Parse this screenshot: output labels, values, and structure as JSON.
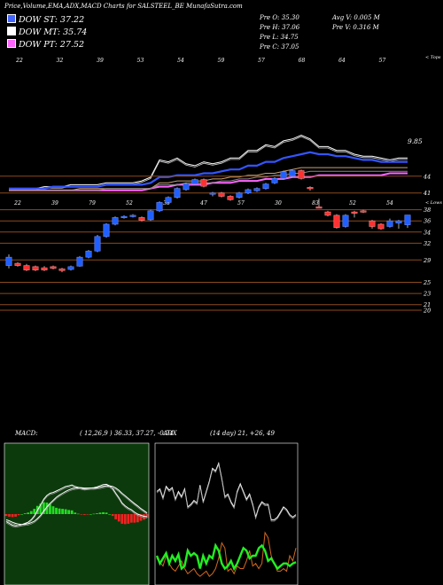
{
  "header": {
    "title": "Price,Volume,EMA,ADX,MACD Charts for SALSTEEL_BE MunafaSutra.com"
  },
  "legend": [
    {
      "label": "DOW ST: 37.22",
      "color": "#4466ff"
    },
    {
      "label": "DOW MT: 35.74",
      "color": "#ffffff"
    },
    {
      "label": "DOW PT: 27.52",
      "color": "#ff66ff"
    }
  ],
  "stats": {
    "open": "Pre  O: 35.30",
    "high": "Pre  H: 37.06",
    "low": "Pre  L: 34.75",
    "close": "Pre  C: 37.05",
    "avg_volume": "Avg V: 0.005  M",
    "pre_volume": "Pre  V: 0.316  M"
  },
  "chart_data": [
    {
      "name": "ema-panel",
      "type": "line",
      "top_tick_labels": [
        "22",
        "32",
        "39",
        "53",
        "54",
        "59",
        "57",
        "68",
        "64",
        "57"
      ],
      "top_axis_label": "< Tops",
      "bottom_tick_labels": [
        "22",
        "39",
        "79",
        "52",
        "38",
        "47",
        "57",
        "30",
        "83",
        "52",
        "54"
      ],
      "bottom_axis_label": "< Lows",
      "last_value_label": "9.85",
      "series": [
        {
          "color": "#ffffff",
          "values": [
            30,
            30,
            30,
            30,
            31,
            31,
            31,
            32,
            32,
            32,
            32,
            33,
            33,
            33,
            33,
            34,
            36,
            45,
            44,
            46,
            43,
            42,
            44,
            43,
            44,
            46,
            46,
            50,
            50,
            53,
            52,
            55,
            56,
            58,
            56,
            52,
            52,
            50,
            50,
            48,
            47,
            47,
            46,
            45,
            46,
            46
          ]
        },
        {
          "color": "#3355ff",
          "values": [
            30,
            30,
            30,
            30,
            30,
            31,
            31,
            31,
            31,
            31,
            31,
            32,
            32,
            32,
            32,
            32,
            33,
            36,
            36,
            37,
            37,
            37,
            38,
            38,
            39,
            40,
            40,
            42,
            42,
            44,
            44,
            46,
            47,
            48,
            49,
            48,
            48,
            47,
            47,
            46,
            45,
            45,
            44,
            44,
            44,
            44
          ]
        },
        {
          "color": "#ff66ff",
          "values": [
            29,
            29,
            29,
            29,
            29,
            29,
            29,
            29,
            29,
            29,
            29,
            29,
            29,
            29,
            29,
            29,
            30,
            31,
            31,
            32,
            32,
            32,
            32,
            33,
            33,
            33,
            34,
            34,
            34,
            35,
            35,
            35,
            36,
            36,
            36,
            37,
            37,
            37,
            37,
            37,
            37,
            37,
            37,
            38,
            38,
            38
          ]
        },
        {
          "color": "#c8a070",
          "values": [
            29,
            29,
            29,
            29,
            29,
            29,
            29,
            29,
            30,
            30,
            30,
            30,
            30,
            30,
            30,
            30,
            30,
            33,
            33,
            34,
            34,
            34,
            34,
            35,
            35,
            36,
            36,
            37,
            37,
            38,
            38,
            39,
            40,
            41,
            41,
            41,
            41,
            41,
            41,
            41,
            41,
            41,
            41,
            41,
            41,
            41
          ]
        },
        {
          "color": "#888888",
          "values": [
            29,
            29,
            29,
            29,
            29,
            29,
            29,
            29,
            29,
            29,
            29,
            30,
            30,
            30,
            30,
            30,
            30,
            32,
            32,
            32,
            33,
            33,
            33,
            33,
            34,
            34,
            35,
            35,
            36,
            36,
            37,
            37,
            38,
            38,
            39,
            39,
            39,
            39,
            39,
            39,
            39,
            39,
            39,
            39,
            39,
            39
          ]
        }
      ]
    },
    {
      "name": "price-panel",
      "type": "candlestick",
      "y_tick_labels": [
        "44",
        "41",
        "38",
        "36",
        "34",
        "32",
        "29",
        "25",
        "23",
        "21",
        "20"
      ],
      "y_tick_values": [
        44,
        41,
        38,
        36,
        34,
        32,
        29,
        25,
        23,
        21,
        20
      ],
      "ylim": [
        19.5,
        46.5
      ],
      "candles": [
        {
          "o": 28.0,
          "c": 29.5,
          "h": 30.0,
          "l": 27.5,
          "up": true
        },
        {
          "o": 28.4,
          "c": 28.0,
          "h": 28.6,
          "l": 27.8,
          "up": false
        },
        {
          "o": 28.0,
          "c": 27.2,
          "h": 28.3,
          "l": 27.0,
          "up": false
        },
        {
          "o": 27.8,
          "c": 27.2,
          "h": 28.0,
          "l": 27.0,
          "up": false
        },
        {
          "o": 27.6,
          "c": 27.2,
          "h": 27.9,
          "l": 27.0,
          "up": false
        },
        {
          "o": 27.8,
          "c": 27.5,
          "h": 28.0,
          "l": 27.3,
          "up": false
        },
        {
          "o": 27.4,
          "c": 27.1,
          "h": 27.6,
          "l": 26.8,
          "up": false
        },
        {
          "o": 27.3,
          "c": 27.8,
          "h": 28.0,
          "l": 27.1,
          "up": true
        },
        {
          "o": 27.9,
          "c": 29.5,
          "h": 29.7,
          "l": 27.8,
          "up": true
        },
        {
          "o": 29.5,
          "c": 30.6,
          "h": 30.8,
          "l": 29.3,
          "up": true
        },
        {
          "o": 30.6,
          "c": 33.2,
          "h": 33.5,
          "l": 30.4,
          "up": true
        },
        {
          "o": 33.2,
          "c": 35.4,
          "h": 35.6,
          "l": 33.0,
          "up": true
        },
        {
          "o": 35.4,
          "c": 36.6,
          "h": 36.8,
          "l": 35.2,
          "up": true
        },
        {
          "o": 36.6,
          "c": 36.8,
          "h": 37.0,
          "l": 36.4,
          "up": true
        },
        {
          "o": 36.8,
          "c": 37.0,
          "h": 37.2,
          "l": 36.6,
          "up": true
        },
        {
          "o": 36.6,
          "c": 36.1,
          "h": 36.8,
          "l": 35.9,
          "up": false
        },
        {
          "o": 36.2,
          "c": 37.8,
          "h": 38.0,
          "l": 36.0,
          "up": true
        },
        {
          "o": 37.8,
          "c": 39.3,
          "h": 39.5,
          "l": 37.6,
          "up": true
        },
        {
          "o": 39.3,
          "c": 40.2,
          "h": 40.4,
          "l": 39.1,
          "up": true
        },
        {
          "o": 40.2,
          "c": 41.8,
          "h": 42.0,
          "l": 40.0,
          "up": true
        },
        {
          "o": 41.6,
          "c": 42.6,
          "h": 42.8,
          "l": 41.4,
          "up": true
        },
        {
          "o": 42.6,
          "c": 43.4,
          "h": 43.6,
          "l": 42.4,
          "up": true
        },
        {
          "o": 43.4,
          "c": 42.2,
          "h": 43.6,
          "l": 42.0,
          "up": false
        },
        {
          "o": 40.8,
          "c": 41.0,
          "h": 41.2,
          "l": 40.4,
          "up": true
        },
        {
          "o": 41.0,
          "c": 40.4,
          "h": 41.2,
          "l": 40.2,
          "up": false
        },
        {
          "o": 40.4,
          "c": 39.8,
          "h": 40.6,
          "l": 39.6,
          "up": false
        },
        {
          "o": 40.2,
          "c": 41.0,
          "h": 41.2,
          "l": 40.0,
          "up": true
        },
        {
          "o": 41.0,
          "c": 41.6,
          "h": 41.8,
          "l": 40.8,
          "up": true
        },
        {
          "o": 41.4,
          "c": 41.8,
          "h": 42.0,
          "l": 41.2,
          "up": true
        },
        {
          "o": 41.8,
          "c": 42.6,
          "h": 42.8,
          "l": 41.6,
          "up": true
        },
        {
          "o": 42.8,
          "c": 43.6,
          "h": 43.8,
          "l": 42.6,
          "up": true
        },
        {
          "o": 43.6,
          "c": 44.8,
          "h": 45.0,
          "l": 43.4,
          "up": true
        },
        {
          "o": 44.0,
          "c": 45.0,
          "h": 45.2,
          "l": 43.8,
          "up": true
        },
        {
          "o": 45.0,
          "c": 43.6,
          "h": 45.2,
          "l": 43.4,
          "up": false
        },
        {
          "o": 42.0,
          "c": 42.0,
          "h": 42.2,
          "l": 41.4,
          "up": false
        },
        {
          "o": 38.5,
          "c": 38.5,
          "h": 40.0,
          "l": 38.3,
          "up": false
        },
        {
          "o": 37.6,
          "c": 37.0,
          "h": 37.8,
          "l": 36.8,
          "up": false
        },
        {
          "o": 37.0,
          "c": 34.8,
          "h": 37.2,
          "l": 34.6,
          "up": false
        },
        {
          "o": 35.0,
          "c": 37.0,
          "h": 37.2,
          "l": 34.8,
          "up": true
        },
        {
          "o": 37.6,
          "c": 37.6,
          "h": 37.8,
          "l": 36.6,
          "up": false
        },
        {
          "o": 37.8,
          "c": 37.6,
          "h": 38.0,
          "l": 37.4,
          "up": false
        },
        {
          "o": 36.0,
          "c": 35.0,
          "h": 36.2,
          "l": 34.6,
          "up": false
        },
        {
          "o": 35.4,
          "c": 34.6,
          "h": 35.6,
          "l": 34.4,
          "up": false
        },
        {
          "o": 35.0,
          "c": 36.0,
          "h": 36.4,
          "l": 34.8,
          "up": true
        },
        {
          "o": 35.6,
          "c": 36.0,
          "h": 36.2,
          "l": 34.6,
          "up": true
        },
        {
          "o": 35.3,
          "c": 37.05,
          "h": 37.06,
          "l": 34.75,
          "up": true
        }
      ]
    },
    {
      "name": "macd-panel",
      "type": "line",
      "label": "MACD:",
      "params": "( 12,26,9 ) 36.33,  37.27,  -0.74",
      "macd": [
        -2,
        -2.5,
        -3,
        -3.2,
        -3,
        -2.8,
        -2.5,
        -2.2,
        -1.5,
        -0.5,
        1,
        2.5,
        4,
        5,
        5.6,
        5.8,
        6.2,
        6.6,
        7,
        7.4,
        7.6,
        7.8,
        7.4,
        7.2,
        7,
        6.8,
        6.9,
        7,
        7.1,
        7.3,
        7.6,
        7.9,
        8,
        7.6,
        6.9,
        5.6,
        4.4,
        3,
        2.2,
        1.6,
        1.2,
        0.5,
        0,
        -0.3,
        -0.6,
        -0.7
      ],
      "signal": [
        -1.5,
        -1.8,
        -2.2,
        -2.5,
        -2.7,
        -2.8,
        -2.7,
        -2.6,
        -2.3,
        -1.9,
        -1.2,
        -0.3,
        0.8,
        1.9,
        2.9,
        3.7,
        4.5,
        5.1,
        5.6,
        6.1,
        6.5,
        6.8,
        7,
        7.1,
        7.1,
        7,
        7,
        7,
        7,
        7.1,
        7.2,
        7.4,
        7.6,
        7.6,
        7.4,
        7,
        6.4,
        5.6,
        4.9,
        4.2,
        3.5,
        2.8,
        2.2,
        1.5,
        0.9,
        0.3
      ],
      "histogram": [
        -0.5,
        -0.7,
        -0.8,
        -0.7,
        -0.3,
        0,
        0.2,
        0.4,
        0.8,
        1.4,
        2.2,
        2.8,
        3.2,
        3.1,
        2.7,
        2.1,
        1.7,
        1.5,
        1.4,
        1.3,
        1.1,
        1,
        0.4,
        0.1,
        -0.1,
        -0.2,
        -0.1,
        0,
        0.1,
        0.2,
        0.4,
        0.5,
        0.4,
        0,
        -0.5,
        -1.4,
        -2,
        -2.6,
        -2.7,
        -2.6,
        -2.3,
        -2.3,
        -2.2,
        -1.8,
        -1.5,
        -1
      ],
      "ylim": [
        -12,
        12
      ]
    },
    {
      "name": "adx-panel",
      "type": "line",
      "label": "ADX",
      "params": "(14 day) 21,  +26,  49",
      "adx": [
        70,
        72,
        65,
        74,
        71,
        73,
        64,
        70,
        66,
        72,
        58,
        60,
        63,
        61,
        75,
        62,
        70,
        78,
        88,
        86,
        92,
        80,
        66,
        68,
        62,
        58,
        70,
        76,
        70,
        64,
        68,
        60,
        50,
        58,
        62,
        60,
        60,
        48,
        48,
        50,
        54,
        58,
        56,
        52,
        50,
        52
      ],
      "plus_di": [
        20,
        14,
        18,
        22,
        14,
        20,
        16,
        21,
        10,
        12,
        24,
        20,
        22,
        20,
        10,
        20,
        14,
        20,
        18,
        28,
        24,
        14,
        10,
        12,
        16,
        10,
        14,
        20,
        26,
        24,
        18,
        20,
        20,
        26,
        28,
        24,
        16,
        18,
        14,
        10,
        12,
        14,
        14,
        12,
        14,
        15
      ],
      "minus_di": [
        18,
        15,
        12,
        20,
        14,
        10,
        8,
        12,
        16,
        10,
        6,
        8,
        10,
        6,
        4,
        6,
        8,
        4,
        6,
        10,
        18,
        30,
        26,
        8,
        10,
        6,
        12,
        10,
        10,
        16,
        24,
        12,
        14,
        10,
        14,
        38,
        34,
        20,
        14,
        8,
        8,
        10,
        8,
        20,
        16,
        26
      ],
      "ylim": [
        0,
        100
      ]
    }
  ]
}
